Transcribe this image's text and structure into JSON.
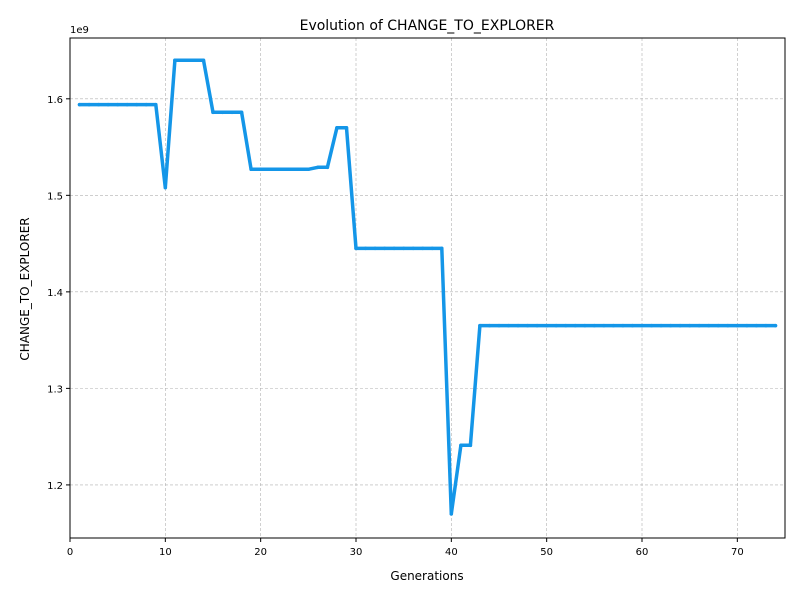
{
  "chart_data": {
    "type": "line",
    "title": "Evolution of CHANGE_TO_EXPLORER",
    "xlabel": "Generations",
    "ylabel": "CHANGE_TO_EXPLORER",
    "y_offset_label": "1e9",
    "xlim": [
      0,
      75
    ],
    "ylim": [
      1.145,
      1.663
    ],
    "x_ticks": [
      0,
      10,
      20,
      30,
      40,
      50,
      60,
      70
    ],
    "y_ticks": [
      1.2,
      1.3,
      1.4,
      1.5,
      1.6
    ],
    "y_tick_labels": [
      "1.2",
      "1.3",
      "1.4",
      "1.5",
      "1.6"
    ],
    "grid": true,
    "legend": "none",
    "line_color": "#1496e8",
    "series": [
      {
        "x": [
          1,
          2,
          3,
          4,
          5,
          6,
          7,
          8,
          9,
          10,
          11,
          12,
          13,
          14,
          15,
          16,
          17,
          18,
          19,
          20,
          21,
          22,
          23,
          24,
          25,
          26,
          27,
          28,
          29,
          30,
          31,
          32,
          33,
          34,
          35,
          36,
          37,
          38,
          39,
          40,
          41,
          42,
          43,
          44,
          45,
          46,
          47,
          48,
          49,
          50,
          51,
          52,
          53,
          54,
          55,
          56,
          57,
          58,
          59,
          60,
          61,
          62,
          63,
          64,
          65,
          66,
          67,
          68,
          69,
          70,
          71,
          72,
          73,
          74
        ],
        "values": [
          1.594,
          1.594,
          1.594,
          1.594,
          1.594,
          1.594,
          1.594,
          1.594,
          1.594,
          1.508,
          1.64,
          1.64,
          1.64,
          1.64,
          1.586,
          1.586,
          1.586,
          1.586,
          1.527,
          1.527,
          1.527,
          1.527,
          1.527,
          1.527,
          1.527,
          1.529,
          1.529,
          1.57,
          1.57,
          1.445,
          1.445,
          1.445,
          1.445,
          1.445,
          1.445,
          1.445,
          1.445,
          1.445,
          1.445,
          1.17,
          1.241,
          1.241,
          1.365,
          1.365,
          1.365,
          1.365,
          1.365,
          1.365,
          1.365,
          1.365,
          1.365,
          1.365,
          1.365,
          1.365,
          1.365,
          1.365,
          1.365,
          1.365,
          1.365,
          1.365,
          1.365,
          1.365,
          1.365,
          1.365,
          1.365,
          1.365,
          1.365,
          1.365,
          1.365,
          1.365,
          1.365,
          1.365,
          1.365,
          1.365
        ]
      }
    ]
  }
}
